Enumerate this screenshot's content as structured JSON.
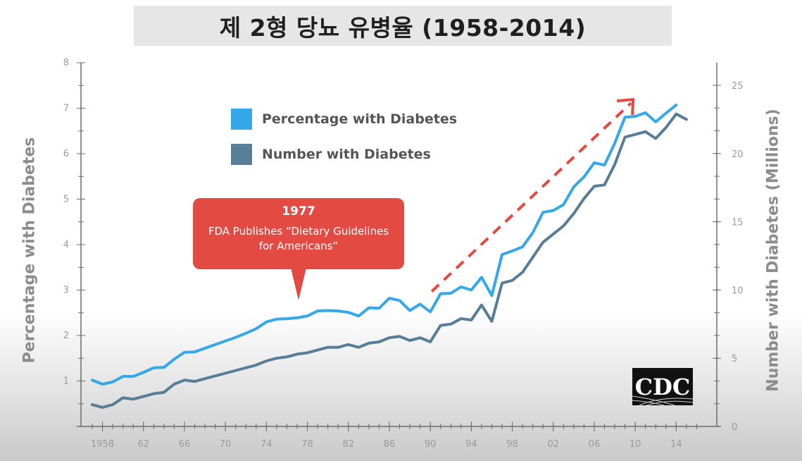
{
  "title": "제 2형 당뇨 유병율 (1958-2014)",
  "colors": {
    "percentage": "#34a8e8",
    "number": "#587d96",
    "callout": "#e24a42",
    "arrow": "#e24a42",
    "axis": "#6d6d6d",
    "tick_label": "#9a9a9a"
  },
  "chart_data": {
    "type": "line",
    "title": "제 2형 당뇨 유병율 (1958-2014)",
    "xlabel": "",
    "ylabel": "Percentage with Diabetes",
    "ylabel_right": "Number with Diabetes (Millions)",
    "ylim": [
      0,
      8
    ],
    "ylim_right": [
      0,
      26
    ],
    "xlim": [
      1957,
      2016
    ],
    "x_ticks": [
      1958,
      1962,
      1966,
      1970,
      1974,
      1978,
      1982,
      1986,
      1990,
      1994,
      1998,
      2002,
      2006,
      2010,
      2014
    ],
    "x_tick_labels": [
      "1958",
      "62",
      "66",
      "70",
      "74",
      "78",
      "82",
      "86",
      "90",
      "94",
      "98",
      "02",
      "06",
      "10",
      "14"
    ],
    "y_ticks_left": [
      1,
      2,
      3,
      4,
      5,
      6,
      7,
      8
    ],
    "y_ticks_right": [
      0,
      5,
      10,
      15,
      20,
      25
    ],
    "legend_position": "top-left",
    "series": [
      {
        "name": "Percentage with Diabetes",
        "axis": "left",
        "x": [
          1957,
          1958,
          1959,
          1960,
          1961,
          1962,
          1963,
          1964,
          1965,
          1966,
          1967,
          1968,
          1969,
          1970,
          1971,
          1972,
          1973,
          1974,
          1975,
          1976,
          1977,
          1978,
          1979,
          1980,
          1981,
          1982,
          1983,
          1984,
          1985,
          1986,
          1987,
          1988,
          1989,
          1990,
          1991,
          1992,
          1993,
          1994,
          1995,
          1996,
          1997,
          1998,
          1999,
          2000,
          2001,
          2002,
          2003,
          2004,
          2005,
          2006,
          2007,
          2008,
          2009,
          2010,
          2011,
          2012,
          2013,
          2014
        ],
        "values": [
          1.02,
          0.93,
          0.98,
          1.1,
          1.1,
          1.19,
          1.29,
          1.3,
          1.48,
          1.63,
          1.64,
          1.72,
          1.8,
          1.88,
          1.96,
          2.05,
          2.15,
          2.3,
          2.36,
          2.37,
          2.39,
          2.43,
          2.54,
          2.55,
          2.54,
          2.51,
          2.43,
          2.61,
          2.6,
          2.82,
          2.77,
          2.55,
          2.69,
          2.52,
          2.92,
          2.93,
          3.07,
          3.0,
          3.28,
          2.88,
          3.78,
          3.86,
          3.95,
          4.26,
          4.71,
          4.75,
          4.88,
          5.27,
          5.49,
          5.8,
          5.75,
          6.23,
          6.8,
          6.82,
          6.9,
          6.7,
          6.89,
          7.07
        ]
      },
      {
        "name": "Number with Diabetes",
        "axis": "right",
        "x": [
          1957,
          1958,
          1959,
          1960,
          1961,
          1962,
          1963,
          1964,
          1965,
          1966,
          1967,
          1968,
          1969,
          1970,
          1971,
          1972,
          1973,
          1974,
          1975,
          1976,
          1977,
          1978,
          1979,
          1980,
          1981,
          1982,
          1983,
          1984,
          1985,
          1986,
          1987,
          1988,
          1989,
          1990,
          1991,
          1992,
          1993,
          1994,
          1995,
          1996,
          1997,
          1998,
          1999,
          2000,
          2001,
          2002,
          2003,
          2004,
          2005,
          2006,
          2007,
          2008,
          2009,
          2010,
          2011,
          2012,
          2013,
          2014,
          2015
        ],
        "values": [
          1.6,
          1.4,
          1.6,
          2.1,
          2.0,
          2.2,
          2.4,
          2.5,
          3.1,
          3.4,
          3.3,
          3.5,
          3.7,
          3.9,
          4.1,
          4.3,
          4.5,
          4.8,
          5.0,
          5.1,
          5.3,
          5.4,
          5.6,
          5.8,
          5.8,
          6.0,
          5.8,
          6.1,
          6.2,
          6.5,
          6.6,
          6.3,
          6.5,
          6.2,
          7.4,
          7.5,
          7.9,
          7.8,
          8.9,
          7.7,
          10.5,
          10.7,
          11.3,
          12.4,
          13.5,
          14.1,
          14.7,
          15.6,
          16.7,
          17.6,
          17.7,
          19.2,
          21.2,
          21.4,
          21.6,
          21.1,
          21.9,
          22.9,
          22.5
        ]
      }
    ],
    "annotations": [
      {
        "type": "callout",
        "year": "1977",
        "text": "FDA Publishes “Dietary Guidelines for Americans”",
        "x": 1977
      },
      {
        "type": "trend-arrow",
        "from": [
          1990,
          3.0
        ],
        "to": [
          2010,
          7.3
        ]
      }
    ]
  },
  "legend": {
    "percentage_label": "Percentage with Diabetes",
    "number_label": "Number with Diabetes"
  },
  "callout": {
    "year": "1977",
    "text": "FDA Publishes “Dietary Guidelines for Americans”"
  },
  "logo": {
    "text": "CDC"
  }
}
